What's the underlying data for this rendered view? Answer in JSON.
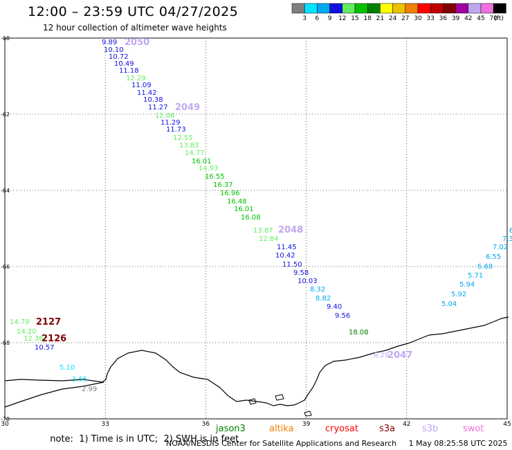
{
  "header": {
    "title": "12:00 – 23:59 UTC 04/27/2025",
    "subtitle": "12 hour collection of altimeter wave heights"
  },
  "colorbar": {
    "labels": [
      "3",
      "6",
      "9",
      "12",
      "15",
      "18",
      "21",
      "24",
      "27",
      "30",
      "33",
      "36",
      "39",
      "42",
      "45",
      "70"
    ],
    "unit": "(ft)",
    "colors": [
      "#7f7f7f",
      "#00e5ff",
      "#00a8f0",
      "#1010e0",
      "#60ee60",
      "#00c000",
      "#008000",
      "#ffff00",
      "#f0c000",
      "#f08000",
      "#ff0000",
      "#c00000",
      "#800000",
      "#a000a0",
      "#c0a8f0",
      "#f070e0",
      "#000000"
    ]
  },
  "map": {
    "x_ticks": [
      "30",
      "33",
      "36",
      "39",
      "42",
      "45"
    ],
    "y_ticks": [
      "-60",
      "-62",
      "-64",
      "-66",
      "-68",
      "-70"
    ],
    "x_range": [
      30,
      45
    ],
    "y_range": [
      -70,
      -60
    ]
  },
  "tracks": [
    {
      "points": [
        {
          "v": "9.89",
          "c": "#1010e0"
        },
        {
          "v": "10.10",
          "c": "#1010e0"
        },
        {
          "v": "10.72",
          "c": "#1010e0"
        },
        {
          "v": "10.49",
          "c": "#1010e0"
        },
        {
          "v": "11.18",
          "c": "#1010e0"
        },
        {
          "v": "12.29",
          "c": "#60ee60"
        },
        {
          "v": "11.09",
          "c": "#1010e0"
        },
        {
          "v": "11.42",
          "c": "#1010e0"
        },
        {
          "v": "10.38",
          "c": "#1010e0"
        },
        {
          "v": "11.27",
          "c": "#1010e0"
        },
        {
          "v": "12.06",
          "c": "#60ee60"
        },
        {
          "v": "11.29",
          "c": "#1010e0"
        },
        {
          "v": "11.73",
          "c": "#1010e0"
        },
        {
          "v": "12.55",
          "c": "#60ee60"
        },
        {
          "v": "13.83",
          "c": "#60ee60"
        },
        {
          "v": "14.77",
          "c": "#60ee60"
        },
        {
          "v": "16.01",
          "c": "#00c000"
        },
        {
          "v": "14.93",
          "c": "#60ee60"
        },
        {
          "v": "16.55",
          "c": "#00c000"
        },
        {
          "v": "16.37",
          "c": "#00c000"
        },
        {
          "v": "16.96",
          "c": "#00c000"
        },
        {
          "v": "16.48",
          "c": "#00c000"
        },
        {
          "v": "16.01",
          "c": "#00c000"
        },
        {
          "v": "16.08",
          "c": "#00c000"
        },
        {
          "v": "13.87",
          "c": "#60ee60"
        },
        {
          "v": "12.84",
          "c": "#60ee60"
        },
        {
          "v": "11.45",
          "c": "#1010e0"
        },
        {
          "v": "10.42",
          "c": "#1010e0"
        },
        {
          "v": "11.50",
          "c": "#1010e0"
        },
        {
          "v": "9.58",
          "c": "#1010e0"
        },
        {
          "v": "10.03",
          "c": "#1010e0"
        },
        {
          "v": "8.32",
          "c": "#00a8f0"
        },
        {
          "v": "8.82",
          "c": "#00a8f0"
        },
        {
          "v": "9.40",
          "c": "#1010e0"
        },
        {
          "v": "9.56",
          "c": "#1010e0"
        },
        {
          "v": "18.08",
          "c": "#008000"
        }
      ]
    },
    {
      "points": [
        {
          "v": "6",
          "c": "#00a8f0"
        },
        {
          "v": "7.3",
          "c": "#00a8f0"
        },
        {
          "v": "7.02",
          "c": "#00a8f0"
        },
        {
          "v": "6.55",
          "c": "#00a8f0"
        },
        {
          "v": "6.68",
          "c": "#00a8f0"
        },
        {
          "v": "5.71",
          "c": "#00a8f0"
        },
        {
          "v": "5.94",
          "c": "#00a8f0"
        },
        {
          "v": "5.92",
          "c": "#00a8f0"
        },
        {
          "v": "5.04",
          "c": "#00a8f0"
        }
      ]
    },
    {
      "points": [
        {
          "v": "14.79",
          "c": "#60ee60"
        },
        {
          "v": "14.20",
          "c": "#60ee60"
        },
        {
          "v": "12.36",
          "c": "#60ee60"
        },
        {
          "v": "10.57",
          "c": "#1010e0"
        },
        {
          "v": "5.10",
          "c": "#00e5ff"
        },
        {
          "v": "3.55",
          "c": "#00e5ff"
        },
        {
          "v": "2.99",
          "c": "#7f7f7f"
        }
      ]
    },
    {
      "points": [
        {
          "v": "6.29",
          "c": "#c0a8f0"
        }
      ]
    }
  ],
  "track_ids": [
    {
      "v": "2050",
      "c": "#c0a8f0"
    },
    {
      "v": "2049",
      "c": "#c0a8f0"
    },
    {
      "v": "2048",
      "c": "#c0a8f0"
    },
    {
      "v": "2047",
      "c": "#c0a8f0"
    },
    {
      "v": "2127",
      "c": "#800000"
    },
    {
      "v": "2126",
      "c": "#800000"
    }
  ],
  "footer": {
    "note": "note:  1) Time is in UTC;  2) SWH is in feet",
    "satellites": [
      {
        "name": "jason3",
        "color": "#008000"
      },
      {
        "name": "altika",
        "color": "#f08000"
      },
      {
        "name": "cryosat",
        "color": "#ff0000"
      },
      {
        "name": "s3a",
        "color": "#800000"
      },
      {
        "name": "s3b",
        "color": "#c0a8f0"
      },
      {
        "name": "swot",
        "color": "#f070e0"
      }
    ],
    "credit": "NOAA/NESDIS Center for Satellite Applications and Research     1 May 08:25:58 UTC 2025"
  }
}
